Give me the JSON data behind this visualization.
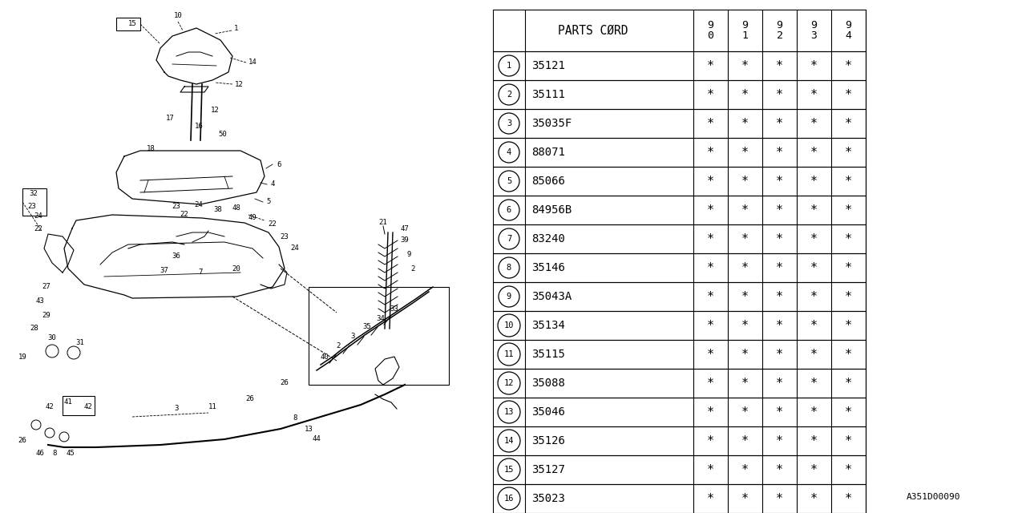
{
  "bg_color": "#ffffff",
  "diagram_ref": "A351D00090",
  "table": {
    "rows": [
      [
        "1",
        "35121"
      ],
      [
        "2",
        "35111"
      ],
      [
        "3",
        "35035F"
      ],
      [
        "4",
        "88071"
      ],
      [
        "5",
        "85066"
      ],
      [
        "6",
        "84956B"
      ],
      [
        "7",
        "83240"
      ],
      [
        "8",
        "35146"
      ],
      [
        "9",
        "35043A"
      ],
      [
        "10",
        "35134"
      ],
      [
        "11",
        "35115"
      ],
      [
        "12",
        "35088"
      ],
      [
        "13",
        "35046"
      ],
      [
        "14",
        "35126"
      ],
      [
        "15",
        "35127"
      ],
      [
        "16",
        "35023"
      ]
    ]
  }
}
